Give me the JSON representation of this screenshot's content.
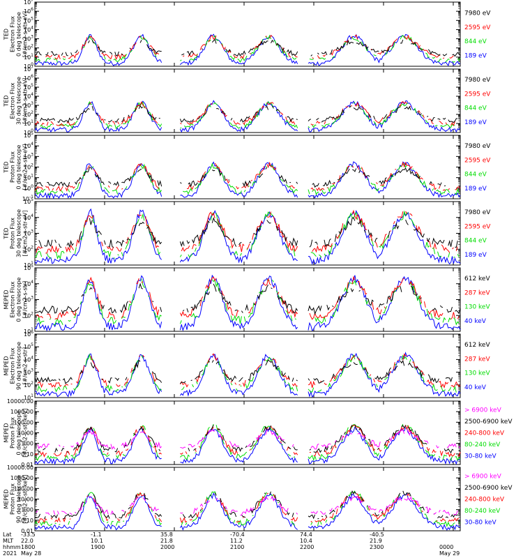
{
  "colors": {
    "blue": "#0000ff",
    "red": "#ff0000",
    "green": "#00dd00",
    "black": "#000000",
    "magenta": "#ff00ff"
  },
  "chart_data": [
    {
      "type": "line",
      "scale": "log",
      "ylim": [
        1,
        10000000
      ],
      "ylabel": [
        "TED",
        "Electron Flux",
        "0 deg telescope",
        "[#/cm2-s-str-eV]"
      ],
      "tick_labels": [
        "10^0",
        "10^1",
        "10^2",
        "10^3",
        "10^4",
        "10^5",
        "10^6",
        "10^7"
      ],
      "series": [
        {
          "name": "7980 eV",
          "color": "black"
        },
        {
          "name": "2595 eV",
          "color": "red"
        },
        {
          "name": "844 eV",
          "color": "green"
        },
        {
          "name": "189 eV",
          "color": "blue"
        }
      ]
    },
    {
      "type": "line",
      "scale": "log",
      "ylim": [
        1,
        10000000
      ],
      "ylabel": [
        "TED",
        "Electron Flux",
        "30 deg telescope",
        "[#/cm2-s-str-eV]"
      ],
      "tick_labels": [
        "10^0",
        "10^1",
        "10^2",
        "10^3",
        "10^4",
        "10^5",
        "10^6",
        "10^7"
      ],
      "series": [
        {
          "name": "7980 eV",
          "color": "black"
        },
        {
          "name": "2595 eV",
          "color": "red"
        },
        {
          "name": "844 eV",
          "color": "green"
        },
        {
          "name": "189 eV",
          "color": "blue"
        }
      ]
    },
    {
      "type": "line",
      "scale": "log",
      "ylim": [
        0.1,
        100000
      ],
      "ylabel": [
        "TED",
        "Proton Flux",
        "0 deg telescope",
        "[#/cm2-s-str-eV]"
      ],
      "tick_labels": [
        "10^-1",
        "10^0",
        "10^1",
        "10^2",
        "10^3",
        "10^4",
        "10^5"
      ],
      "series": [
        {
          "name": "7980 eV",
          "color": "black"
        },
        {
          "name": "2595 eV",
          "color": "red"
        },
        {
          "name": "844 eV",
          "color": "green"
        },
        {
          "name": "189 eV",
          "color": "blue"
        }
      ]
    },
    {
      "type": "line",
      "scale": "log",
      "ylim": [
        10,
        100000
      ],
      "ylabel": [
        "TED",
        "Proton Flux",
        "30 deg telescope",
        "[#/cm2-s-str-eV]"
      ],
      "tick_labels": [
        "10^1",
        "10^2",
        "10^3",
        "10^4",
        "10^5"
      ],
      "series": [
        {
          "name": "7980 eV",
          "color": "black"
        },
        {
          "name": "2595 eV",
          "color": "red"
        },
        {
          "name": "844 eV",
          "color": "green"
        },
        {
          "name": "189 eV",
          "color": "blue"
        }
      ]
    },
    {
      "type": "line",
      "scale": "log",
      "ylim": [
        10,
        100000
      ],
      "ylabel": [
        "MEPED",
        "Electron Flux",
        "0 deg telescope",
        "[#/cm2-s-str]"
      ],
      "tick_labels": [
        "10^1",
        "10^2",
        "10^3",
        "10^4",
        "10^5"
      ],
      "series": [
        {
          "name": "612 keV",
          "color": "black"
        },
        {
          "name": "287 keV",
          "color": "red"
        },
        {
          "name": "130 keV",
          "color": "green"
        },
        {
          "name": "40 keV",
          "color": "blue"
        }
      ]
    },
    {
      "type": "line",
      "scale": "log",
      "ylim": [
        10,
        1000000
      ],
      "ylabel": [
        "MEPED",
        "Electron Flux",
        "90 deg telescope",
        "[#/cm2-s-str]"
      ],
      "tick_labels": [
        "10^1",
        "10^2",
        "10^3",
        "10^4",
        "10^5",
        "10^6"
      ],
      "series": [
        {
          "name": "612 keV",
          "color": "black"
        },
        {
          "name": "287 keV",
          "color": "red"
        },
        {
          "name": "130 keV",
          "color": "green"
        },
        {
          "name": "40 keV",
          "color": "blue"
        }
      ]
    },
    {
      "type": "line",
      "scale": "log",
      "ylim": [
        0.01,
        10000
      ],
      "ylabel": [
        "MEPED",
        "Proton Flux",
        "0 deg telescope",
        "[#/cm2-s-str-keV]"
      ],
      "tick_labels": [
        "0.01",
        "0.10",
        "1.00",
        "10.00",
        "100.00",
        "1000.00",
        "10000.00"
      ],
      "series": [
        {
          "name": "> 6900 keV",
          "color": "magenta"
        },
        {
          "name": "2500-6900 keV",
          "color": "black"
        },
        {
          "name": "240-800 keV",
          "color": "red"
        },
        {
          "name": "80-240 keV",
          "color": "green"
        },
        {
          "name": "30-80 keV",
          "color": "blue"
        }
      ]
    },
    {
      "type": "line",
      "scale": "log",
      "ylim": [
        0.01,
        10000
      ],
      "ylabel": [
        "MEPED",
        "Proton Flux",
        "90 deg telescope",
        "[#/cm2-s-str-keV]"
      ],
      "tick_labels": [
        "0.01",
        "0.10",
        "1.00",
        "10.00",
        "100.00",
        "1000.00",
        "10000.00"
      ],
      "series": [
        {
          "name": "> 6900 keV",
          "color": "magenta"
        },
        {
          "name": "2500-6900 keV",
          "color": "black"
        },
        {
          "name": "240-800 keV",
          "color": "red"
        },
        {
          "name": "80-240 keV",
          "color": "green"
        },
        {
          "name": "30-80 keV",
          "color": "blue"
        }
      ]
    }
  ],
  "xaxis": {
    "row_labels": [
      "Lat",
      "MLT",
      "hhmm",
      "2021"
    ],
    "ticks": [
      {
        "lat": "-33.5",
        "mlt": "22.0",
        "hhmm": "1800",
        "date": "May 28"
      },
      {
        "lat": "-1.1",
        "mlt": "10.1",
        "hhmm": "1900",
        "date": ""
      },
      {
        "lat": "35.8",
        "mlt": "21.8",
        "hhmm": "2000",
        "date": ""
      },
      {
        "lat": "-70.4",
        "mlt": "11.2",
        "hhmm": "2100",
        "date": ""
      },
      {
        "lat": "74.4",
        "mlt": "10.4",
        "hhmm": "2200",
        "date": ""
      },
      {
        "lat": "-40.5",
        "mlt": "21.9",
        "hhmm": "2300",
        "date": ""
      },
      {
        "lat": "",
        "mlt": "",
        "hhmm": "0000",
        "date": "May 29"
      }
    ]
  }
}
